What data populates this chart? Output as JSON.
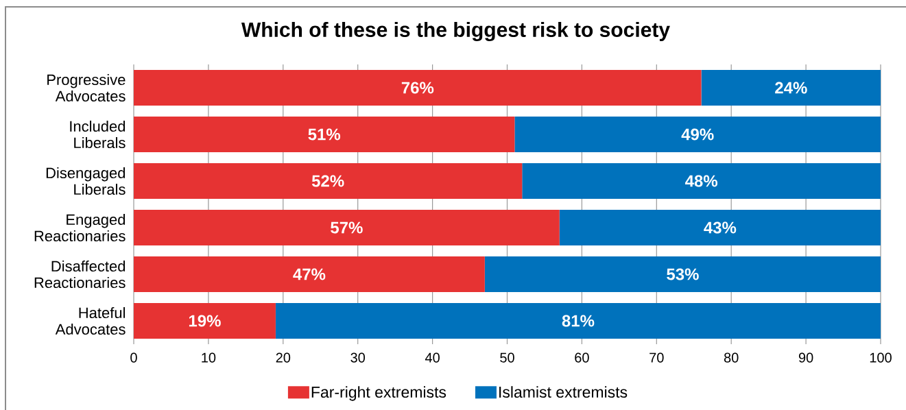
{
  "chart_data": {
    "type": "bar",
    "title": "Which of these is the biggest risk to society",
    "orientation": "horizontal",
    "stacked": true,
    "categories": [
      "Progressive Advocates",
      "Included Liberals",
      "Disengaged Liberals",
      "Engaged Reactionaries",
      "Disaffected Reactionaries",
      "Hateful Advocates"
    ],
    "series": [
      {
        "name": "Far-right extremists",
        "color": "#e63333",
        "values": [
          76,
          51,
          52,
          57,
          47,
          19
        ],
        "value_labels": [
          "76%",
          "51%",
          "52%",
          "57%",
          "47%",
          "19%"
        ]
      },
      {
        "name": "Islamist extremists",
        "color": "#0072bc",
        "values": [
          24,
          49,
          48,
          43,
          53,
          81
        ],
        "value_labels": [
          "24%",
          "49%",
          "48%",
          "43%",
          "53%",
          "81%"
        ]
      }
    ],
    "xlim": [
      0,
      100
    ],
    "xticks": [
      0,
      10,
      20,
      30,
      40,
      50,
      60,
      70,
      80,
      90,
      100
    ],
    "grid": "x",
    "legend": "bottom"
  }
}
